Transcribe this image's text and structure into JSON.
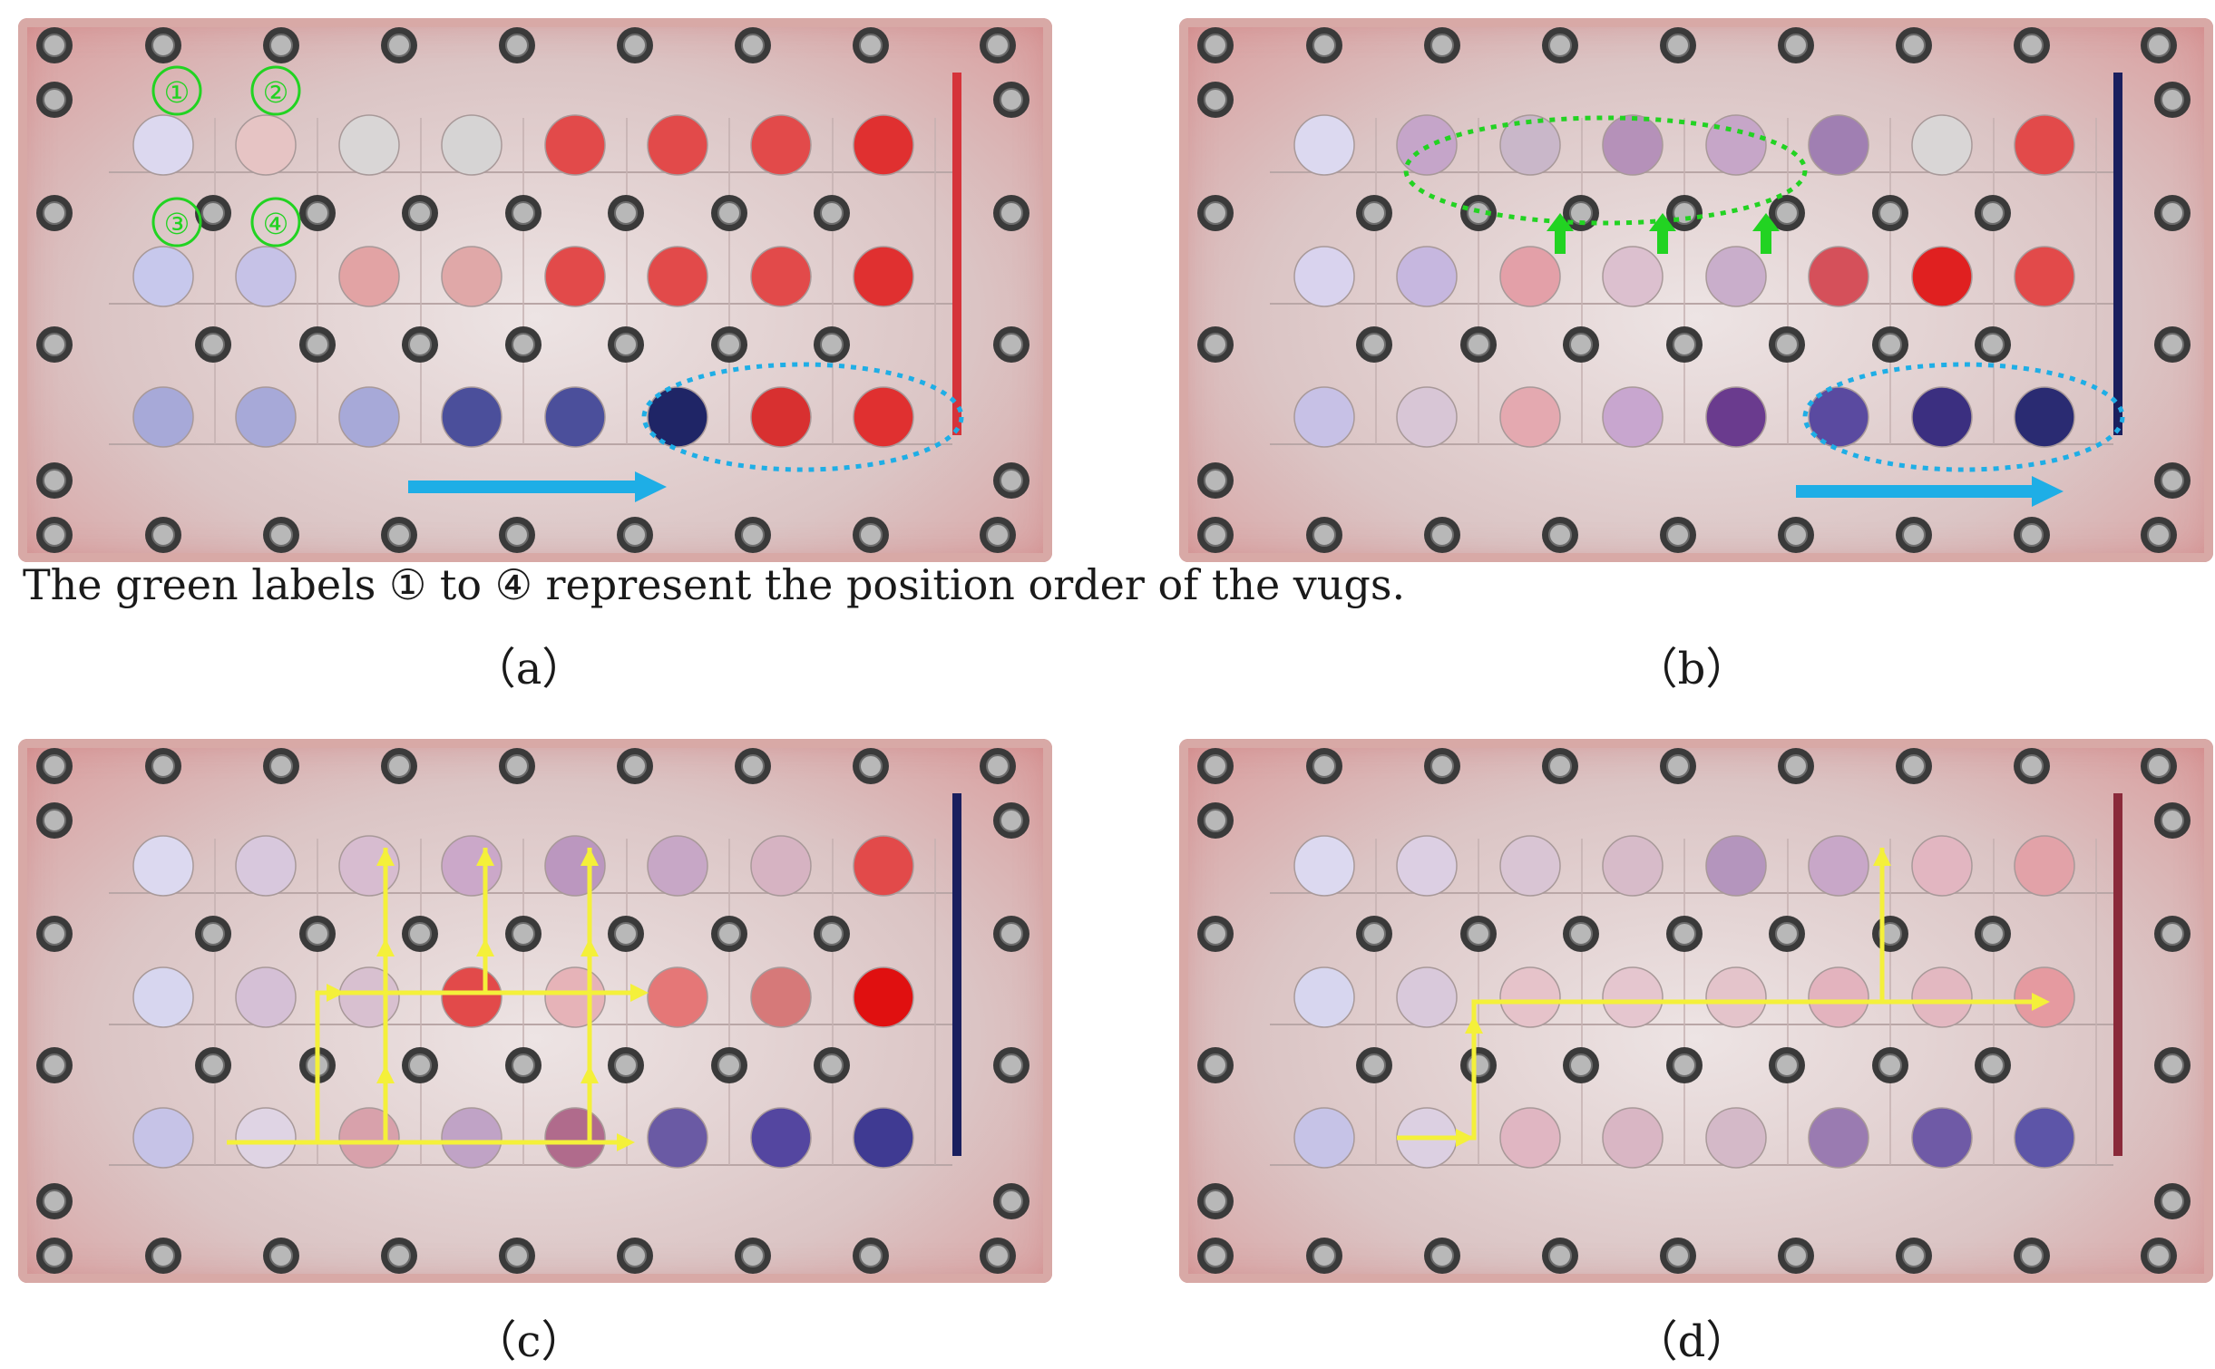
{
  "figure": {
    "note": "The green labels ① to ④ represent the position order of the vugs.",
    "panels": [
      {
        "id": "a",
        "caption": "（a）",
        "vug_labels": [
          "①",
          "②",
          "③",
          "④"
        ]
      },
      {
        "id": "b",
        "caption": "（b）"
      },
      {
        "id": "c",
        "caption": "（c）"
      },
      {
        "id": "d",
        "caption": "（d）"
      }
    ]
  },
  "colors": {
    "label_green": "#22d322",
    "annotation_blue": "#1eaee6",
    "path_yellow": "#f4f03a",
    "oil_red": "#e8242a",
    "dye_navy": "#1a1f5e",
    "panel_border": "#d8a9a6"
  },
  "icons": [
    "bolt-icon",
    "arrow-right-icon",
    "arrow-up-icon",
    "dashed-ellipse"
  ]
}
